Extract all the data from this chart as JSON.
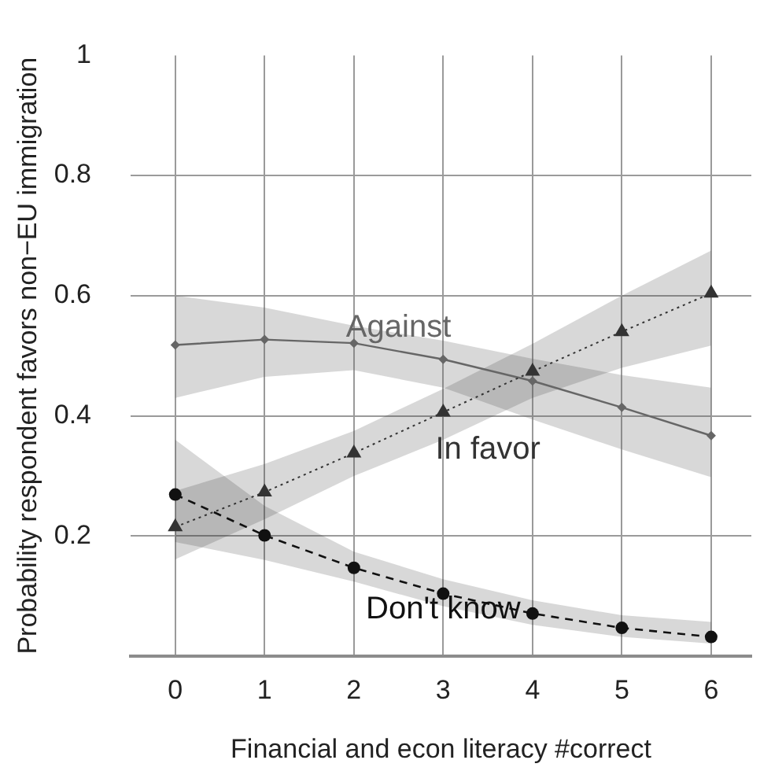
{
  "chart_data": {
    "type": "line",
    "xlabel": "Financial and econ literacy #correct",
    "ylabel": "Probability respondent favors non−EU immigration",
    "x": [
      0,
      1,
      2,
      3,
      4,
      5,
      6
    ],
    "xlim": [
      -0.5,
      6.45
    ],
    "xticks": [
      0,
      1,
      2,
      3,
      4,
      5,
      6
    ],
    "ylim": [
      0,
      1
    ],
    "yticks": [
      0.2,
      0.4,
      0.6,
      0.8,
      1
    ],
    "grid": true,
    "series": [
      {
        "name": "Against",
        "color": "#666666",
        "marker": "diamond",
        "line_style": "solid",
        "values": [
          0.518,
          0.527,
          0.521,
          0.494,
          0.458,
          0.414,
          0.367
        ],
        "lower": [
          0.43,
          0.465,
          0.476,
          0.447,
          0.394,
          0.344,
          0.298
        ],
        "upper": [
          0.6,
          0.58,
          0.55,
          0.525,
          0.495,
          0.468,
          0.447
        ]
      },
      {
        "name": "In favor",
        "color": "#333333",
        "marker": "triangle",
        "line_style": "dotted",
        "values": [
          0.215,
          0.273,
          0.338,
          0.406,
          0.474,
          0.54,
          0.604
        ],
        "lower": [
          0.161,
          0.228,
          0.3,
          0.36,
          0.43,
          0.48,
          0.517
        ],
        "upper": [
          0.275,
          0.32,
          0.375,
          0.445,
          0.52,
          0.6,
          0.675
        ]
      },
      {
        "name": "Don't know",
        "color": "#111111",
        "marker": "circle",
        "line_style": "dashed",
        "values": [
          0.269,
          0.201,
          0.147,
          0.104,
          0.071,
          0.047,
          0.032
        ],
        "lower": [
          0.19,
          0.16,
          0.124,
          0.083,
          0.052,
          0.032,
          0.021
        ],
        "upper": [
          0.36,
          0.25,
          0.174,
          0.128,
          0.093,
          0.068,
          0.057
        ]
      }
    ]
  }
}
